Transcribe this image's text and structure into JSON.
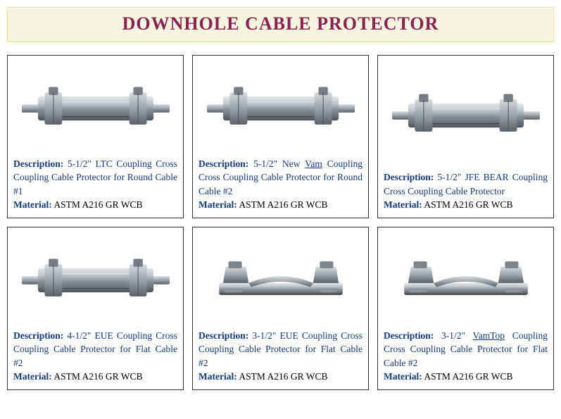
{
  "page": {
    "title": "DOWNHOLE CABLE PROTECTOR",
    "title_color": "#8b2252",
    "title_bg": "#f5f5e0",
    "title_border": "#e6e68a",
    "title_fontsize": 26
  },
  "labels": {
    "description": "Description:",
    "material": "Material:"
  },
  "items": [
    {
      "desc_prefix": "5-1/2\" LTC Coupling Cross Coupling Cable Protector for Round Cable #1",
      "underline_word": "",
      "desc_suffix": "",
      "material": "ASTM A216 GR WCB",
      "illustration": "round"
    },
    {
      "desc_prefix": "5-1/2\" New ",
      "underline_word": "Vam",
      "desc_suffix": " Coupling Cross Coupling Cable Protector for Round Cable #2",
      "material": "ASTM A216 GR WCB",
      "illustration": "round"
    },
    {
      "desc_prefix": "5-1/2\" JFE BEAR Coupling Cross Coupling Cable Protector",
      "underline_word": "",
      "desc_suffix": "",
      "material": "ASTM A216 GR WCB",
      "illustration": "round"
    },
    {
      "desc_prefix": "4-1/2\" EUE Coupling Cross Coupling Cable Protector for Flat Cable #2",
      "underline_word": "",
      "desc_suffix": "",
      "material": "ASTM A216 GR WCB",
      "illustration": "round"
    },
    {
      "desc_prefix": "3-1/2\" EUE Coupling Cross Coupling Cable Protector for Flat Cable #2",
      "underline_word": "",
      "desc_suffix": "",
      "material": "ASTM A216 GR WCB",
      "illustration": "flat"
    },
    {
      "desc_prefix": "3-1/2\" ",
      "underline_word": "VamTop",
      "desc_suffix": " Coupling Cross Coupling Cable Protector for Flat Cable #2",
      "material": "ASTM A216 GR WCB",
      "illustration": "flat"
    }
  ],
  "colors": {
    "card_border": "#333333",
    "desc_text": "#143a7a",
    "material_text": "#000000",
    "metal_light": "#cdd2d6",
    "metal_mid": "#9aa1a7",
    "metal_dark": "#6a7075"
  }
}
